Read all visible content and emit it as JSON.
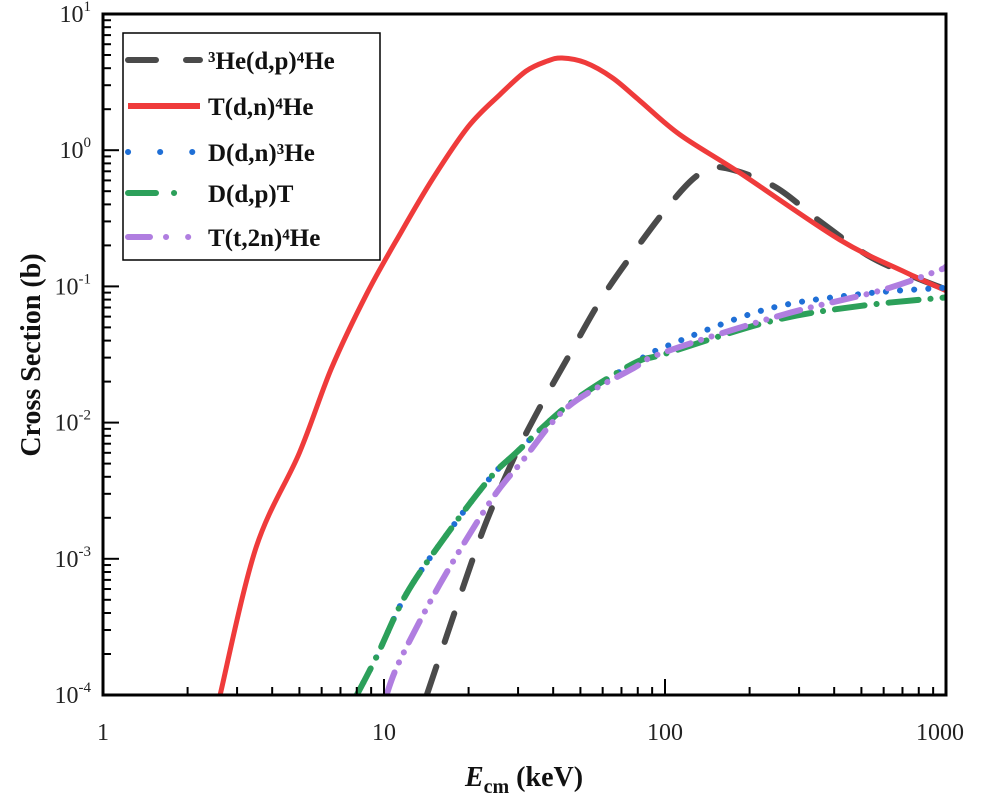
{
  "chart_data": {
    "type": "line",
    "title": "",
    "xlabel": {
      "main": "E",
      "sub": "cm",
      "unit": " (keV)"
    },
    "ylabel": "Cross Section (b)",
    "xscale": "log",
    "yscale": "log",
    "xlim": [
      1,
      1000
    ],
    "ylim": [
      0.0001,
      10
    ],
    "x_ticks": [
      "1",
      "10",
      "100",
      "1000"
    ],
    "y_ticks": [
      {
        "base": "10",
        "exp": "1"
      },
      {
        "base": "10",
        "exp": "0"
      },
      {
        "base": "10",
        "exp": "-1"
      },
      {
        "base": "10",
        "exp": "-2"
      },
      {
        "base": "10",
        "exp": "-3"
      },
      {
        "base": "10",
        "exp": "-4"
      }
    ],
    "grid": false,
    "legend_position": "top-left",
    "series": [
      {
        "name": "³He(d,p)⁴He",
        "color": "#4a4a4a",
        "style": "dash",
        "points": [
          [
            14.2,
            0.0001
          ],
          [
            16.8,
            0.00028
          ],
          [
            19.7,
            0.00074
          ],
          [
            23.2,
            0.0019
          ],
          [
            29,
            0.0055
          ],
          [
            35.9,
            0.013
          ],
          [
            44.7,
            0.029
          ],
          [
            58.7,
            0.078
          ],
          [
            77,
            0.176
          ],
          [
            104,
            0.4
          ],
          [
            130,
            0.65
          ],
          [
            157,
            0.75
          ],
          [
            242,
            0.55
          ],
          [
            356,
            0.3
          ],
          [
            524,
            0.17
          ],
          [
            750,
            0.12
          ],
          [
            1000,
            0.095
          ]
        ]
      },
      {
        "name": "T(d,n)⁴He",
        "color": "#ef3b3b",
        "style": "solid",
        "points": [
          [
            2.61,
            0.0001
          ],
          [
            3.5,
            0.0012
          ],
          [
            5.0,
            0.006
          ],
          [
            6.5,
            0.025
          ],
          [
            8.7,
            0.089
          ],
          [
            11.5,
            0.25
          ],
          [
            15,
            0.63
          ],
          [
            20,
            1.5
          ],
          [
            25.9,
            2.57
          ],
          [
            32,
            3.8
          ],
          [
            38,
            4.5
          ],
          [
            43,
            4.75
          ],
          [
            52,
            4.4
          ],
          [
            65,
            3.4
          ],
          [
            81.5,
            2.3
          ],
          [
            113,
            1.3
          ],
          [
            185,
            0.68
          ],
          [
            419,
            0.22
          ],
          [
            700,
            0.13
          ],
          [
            1000,
            0.093
          ]
        ]
      },
      {
        "name": "D(d,n)³He",
        "color": "#1f6fd6",
        "style": "dot",
        "points": [
          [
            8.0,
            0.0001
          ],
          [
            9.4,
            0.00019
          ],
          [
            12,
            0.00055
          ],
          [
            16.7,
            0.0015
          ],
          [
            23.8,
            0.0039
          ],
          [
            29.5,
            0.006
          ],
          [
            46,
            0.0138
          ],
          [
            77,
            0.027
          ],
          [
            100,
            0.036
          ],
          [
            230,
            0.068
          ],
          [
            500,
            0.088
          ],
          [
            1000,
            0.098
          ]
        ]
      },
      {
        "name": "D(d,p)T",
        "color": "#2ca05a",
        "style": "dashdot",
        "points": [
          [
            8.0,
            0.0001
          ],
          [
            9.4,
            0.00019
          ],
          [
            12,
            0.00055
          ],
          [
            16.7,
            0.0015
          ],
          [
            23.8,
            0.0039
          ],
          [
            29.5,
            0.006
          ],
          [
            46,
            0.0138
          ],
          [
            77,
            0.027
          ],
          [
            100,
            0.032
          ],
          [
            242,
            0.056
          ],
          [
            500,
            0.072
          ],
          [
            1000,
            0.083
          ]
        ]
      },
      {
        "name": "T(t,2n)⁴He",
        "color": "#b07ee0",
        "style": "dashdotdot",
        "points": [
          [
            10.2,
            0.0001
          ],
          [
            11.4,
            0.00018
          ],
          [
            15.8,
            0.00065
          ],
          [
            23.8,
            0.0026
          ],
          [
            31,
            0.0052
          ],
          [
            45,
            0.013
          ],
          [
            77,
            0.025
          ],
          [
            100,
            0.033
          ],
          [
            263,
            0.062
          ],
          [
            582,
            0.093
          ],
          [
            933,
            0.13
          ],
          [
            1000,
            0.14
          ]
        ]
      }
    ]
  }
}
